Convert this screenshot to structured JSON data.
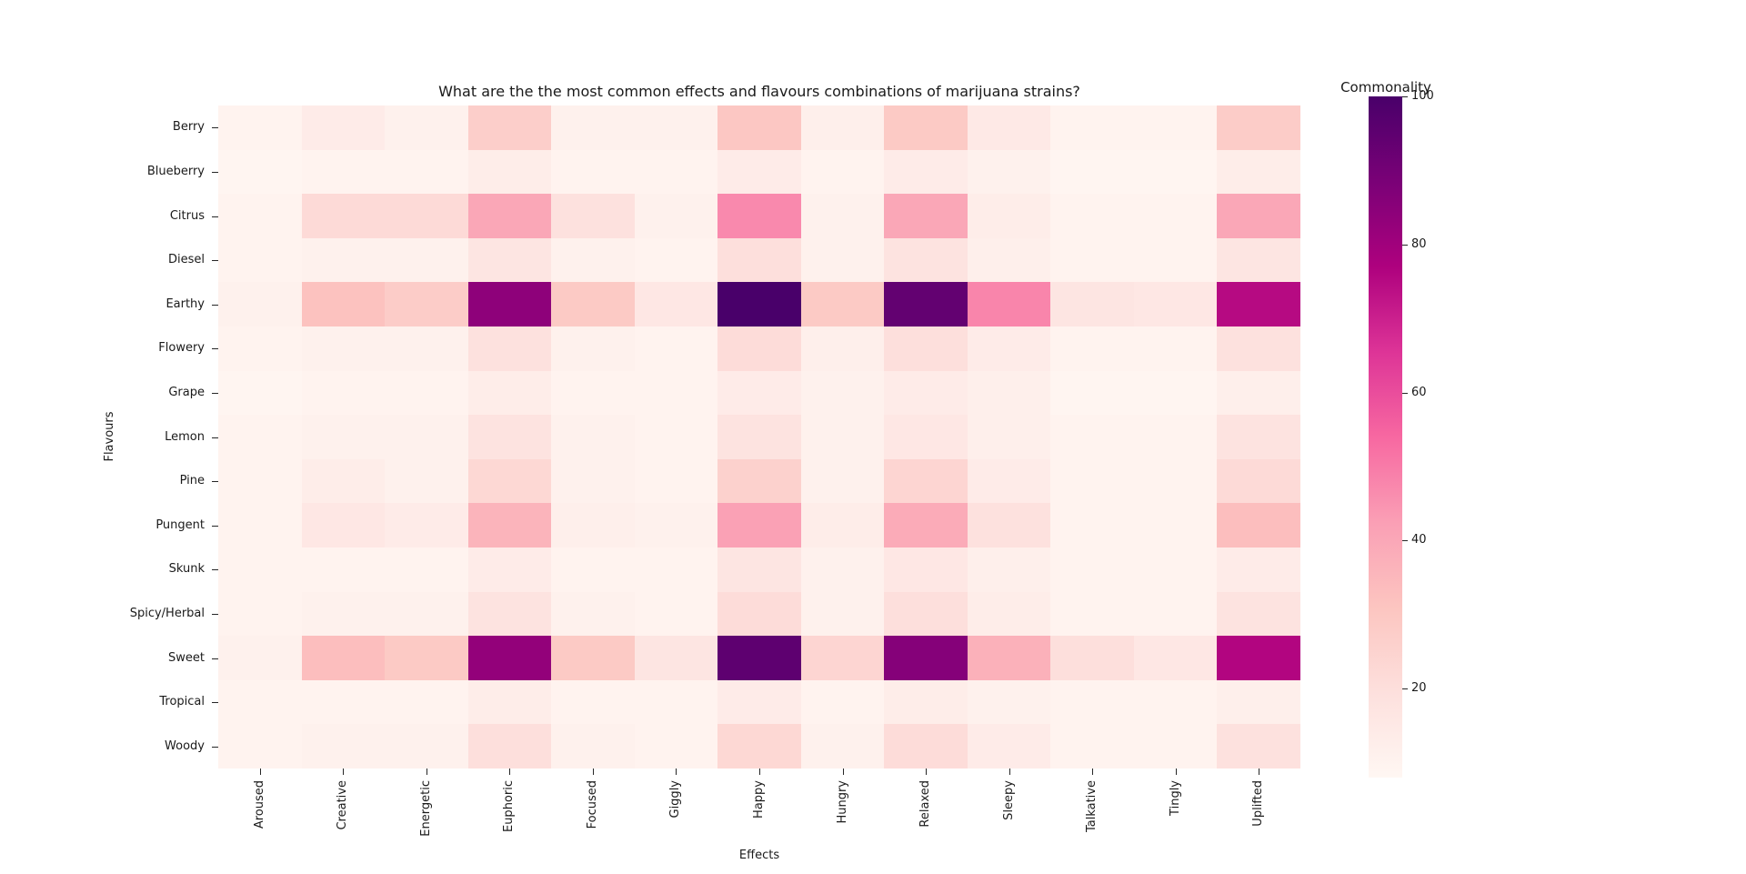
{
  "chart_data": {
    "type": "heatmap",
    "title": "What are the the most common effects and flavours combinations of marijuana strains?",
    "xlabel": "Effects",
    "ylabel": "Flavours",
    "columns": [
      "Aroused",
      "Creative",
      "Energetic",
      "Euphoric",
      "Focused",
      "Giggly",
      "Happy",
      "Hungry",
      "Relaxed",
      "Sleepy",
      "Talkative",
      "Tingly",
      "Uplifted"
    ],
    "rows": [
      "Berry",
      "Blueberry",
      "Citrus",
      "Diesel",
      "Earthy",
      "Flowery",
      "Grape",
      "Lemon",
      "Pine",
      "Pungent",
      "Skunk",
      "Spicy/Herbal",
      "Sweet",
      "Tropical",
      "Woody"
    ],
    "values": [
      [
        10,
        14,
        11,
        27,
        11,
        11,
        30,
        12,
        29,
        15,
        10,
        10,
        28
      ],
      [
        9,
        10,
        10,
        13,
        10,
        10,
        14,
        10,
        14,
        11,
        9,
        9,
        13
      ],
      [
        10,
        22,
        22,
        40,
        19,
        11,
        47,
        11,
        40,
        13,
        10,
        10,
        40
      ],
      [
        10,
        11,
        11,
        17,
        11,
        10,
        20,
        11,
        18,
        12,
        10,
        10,
        17
      ],
      [
        11,
        32,
        28,
        84,
        29,
        16,
        100,
        29,
        94,
        48,
        17,
        16,
        75
      ],
      [
        10,
        11,
        11,
        19,
        11,
        10,
        21,
        12,
        20,
        14,
        10,
        10,
        19
      ],
      [
        9,
        10,
        10,
        13,
        10,
        10,
        14,
        11,
        14,
        12,
        9,
        9,
        12
      ],
      [
        10,
        11,
        11,
        18,
        11,
        10,
        18,
        11,
        16,
        12,
        10,
        10,
        18
      ],
      [
        10,
        13,
        11,
        23,
        11,
        10,
        26,
        11,
        24,
        14,
        10,
        10,
        22
      ],
      [
        10,
        16,
        14,
        36,
        12,
        11,
        42,
        13,
        39,
        19,
        10,
        10,
        33
      ],
      [
        10,
        10,
        10,
        14,
        10,
        10,
        17,
        11,
        16,
        12,
        10,
        10,
        14
      ],
      [
        10,
        11,
        11,
        18,
        11,
        10,
        21,
        11,
        20,
        13,
        10,
        10,
        18
      ],
      [
        11,
        33,
        29,
        83,
        29,
        17,
        95,
        24,
        86,
        37,
        20,
        16,
        76
      ],
      [
        10,
        10,
        10,
        13,
        10,
        10,
        14,
        10,
        13,
        11,
        10,
        10,
        12
      ],
      [
        10,
        11,
        11,
        20,
        11,
        10,
        23,
        11,
        21,
        14,
        10,
        10,
        19
      ]
    ],
    "colorbar": {
      "title": "Commonality",
      "tick_labels": [
        "20",
        "40",
        "60",
        "80",
        "100"
      ],
      "ticks": [
        20,
        40,
        60,
        80,
        100
      ],
      "vmin": 8,
      "vmax": 100
    },
    "colormap": {
      "name": "RdPu",
      "stops": [
        "#fff7f3",
        "#fde0dd",
        "#fcc5c0",
        "#fa9fb5",
        "#f768a1",
        "#dd3497",
        "#ae017e",
        "#7a0177",
        "#49006a"
      ]
    },
    "legend_position": "right",
    "grid": false
  }
}
